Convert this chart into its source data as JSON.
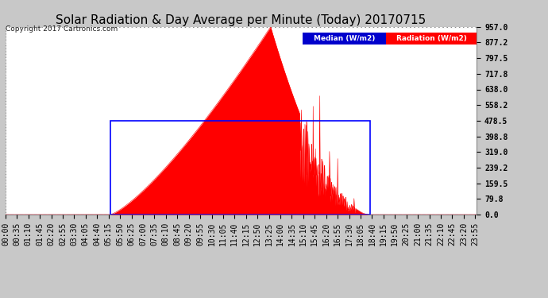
{
  "title": "Solar Radiation & Day Average per Minute (Today) 20170715",
  "copyright": "Copyright 2017 Cartronics.com",
  "yticks": [
    0.0,
    79.8,
    159.5,
    239.2,
    319.0,
    398.8,
    478.5,
    558.2,
    638.0,
    717.8,
    797.5,
    877.2,
    957.0
  ],
  "ymax": 957.0,
  "ymin": 0.0,
  "bg_color": "#c8c8c8",
  "plot_bg": "#ffffff",
  "grid_color": "#aaaaaa",
  "radiation_color": "#ff0000",
  "median_color": "#0000ff",
  "title_fontsize": 11,
  "tick_fontsize": 7,
  "sunrise_minute": 320,
  "sunset_minute": 1115,
  "peak_minute": 810,
  "peak_val": 957.0,
  "median_start_minute": 320,
  "median_end_minute": 1115,
  "median_value": 478.5,
  "xtick_labels": [
    "00:00",
    "00:35",
    "01:10",
    "01:45",
    "02:20",
    "02:55",
    "03:30",
    "04:05",
    "04:40",
    "05:15",
    "05:50",
    "06:25",
    "07:00",
    "07:35",
    "08:10",
    "08:45",
    "09:20",
    "09:55",
    "10:30",
    "11:05",
    "11:40",
    "12:15",
    "12:50",
    "13:25",
    "14:00",
    "14:35",
    "15:10",
    "15:45",
    "16:20",
    "16:55",
    "17:30",
    "18:05",
    "18:40",
    "19:15",
    "19:50",
    "20:25",
    "21:00",
    "21:35",
    "22:10",
    "22:45",
    "23:20",
    "23:55"
  ],
  "xtick_minutes": [
    0,
    35,
    70,
    105,
    140,
    175,
    210,
    245,
    280,
    315,
    350,
    385,
    420,
    455,
    490,
    525,
    560,
    595,
    630,
    665,
    700,
    735,
    770,
    805,
    840,
    875,
    910,
    945,
    980,
    1015,
    1050,
    1085,
    1120,
    1155,
    1190,
    1225,
    1260,
    1295,
    1330,
    1365,
    1400,
    1435
  ]
}
